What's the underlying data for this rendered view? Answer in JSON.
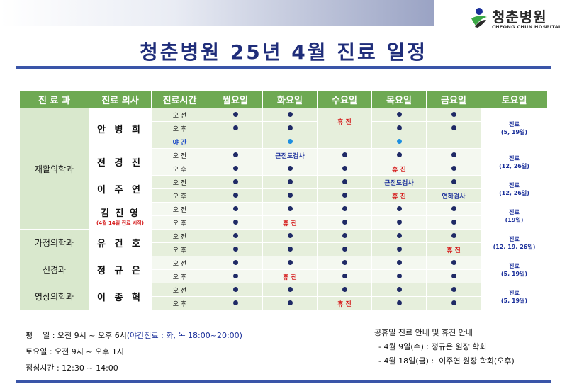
{
  "logo": {
    "name": "청춘병원",
    "sub": "CHEONG CHUN HOSPITAL"
  },
  "title": "청춘병원 25년 4월 진료 일정",
  "headers": [
    "진 료 과",
    "진료 의사",
    "진료시간",
    "월요일",
    "화요일",
    "수요일",
    "목요일",
    "금요일",
    "토요일"
  ],
  "symbols": {
    "off": "휴 진",
    "exam_nerve": "근전도검사",
    "exam_swallow": "연하검사"
  },
  "rows": [
    {
      "time": "오 전",
      "cells": [
        "dot",
        "dot",
        "off",
        "dot",
        "dot"
      ]
    },
    {
      "time": "오 후",
      "cells": [
        "dot",
        "dot",
        "",
        "dot",
        "dot"
      ]
    },
    {
      "time": "야 간",
      "cells": [
        "",
        "blue",
        "",
        "blue",
        ""
      ]
    },
    {
      "time": "오 전",
      "cells": [
        "dot",
        "exam_nerve",
        "dot",
        "dot",
        "dot"
      ]
    },
    {
      "time": "오 후",
      "cells": [
        "dot",
        "dot",
        "dot",
        "off",
        "dot"
      ]
    },
    {
      "time": "오 전",
      "cells": [
        "dot",
        "dot",
        "dot",
        "exam_nerve",
        "dot"
      ]
    },
    {
      "time": "오 후",
      "cells": [
        "dot",
        "dot",
        "dot",
        "off",
        "exam_swallow"
      ]
    },
    {
      "time": "오 전",
      "cells": [
        "dot",
        "dot",
        "dot",
        "dot",
        "dot"
      ]
    },
    {
      "time": "오 후",
      "cells": [
        "dot",
        "off",
        "dot",
        "dot",
        "dot"
      ]
    },
    {
      "time": "오 전",
      "cells": [
        "dot",
        "dot",
        "dot",
        "dot",
        "dot"
      ]
    },
    {
      "time": "오 후",
      "cells": [
        "dot",
        "dot",
        "dot",
        "dot",
        "off"
      ]
    },
    {
      "time": "오 전",
      "cells": [
        "dot",
        "dot",
        "dot",
        "dot",
        "dot"
      ]
    },
    {
      "time": "오 후",
      "cells": [
        "dot",
        "off",
        "dot",
        "dot",
        "dot"
      ]
    },
    {
      "time": "오 전",
      "cells": [
        "dot",
        "dot",
        "dot",
        "dot",
        "dot"
      ]
    },
    {
      "time": "오 후",
      "cells": [
        "dot",
        "dot",
        "off",
        "dot",
        "dot"
      ]
    }
  ],
  "departments": [
    "재활의학과",
    "가정의학과",
    "신경과",
    "영상의학과"
  ],
  "doctors": {
    "d1": "안 병 희",
    "d2": "전 경 진",
    "d3": "이 주 연",
    "d4": "김 진 영",
    "d4_note": "(4월 14일 진료 시작)",
    "d5": "유 건 호",
    "d6": "정 규 은",
    "d7": "이 종 혁"
  },
  "saturday": {
    "s1a": "진료",
    "s1b": "(5, 19일)",
    "s2a": "진료",
    "s2b": "(12, 26일)",
    "s3a": "진료",
    "s3b": "(12, 26일)",
    "s4a": "진료",
    "s4b": "(19일)",
    "s5a": "진료",
    "s5b": "(12, 19, 26일)",
    "s6a": "진료",
    "s6b": "(5, 19일)",
    "s7a": "진료",
    "s7b": "(5, 19일)"
  },
  "footer": {
    "weekday": "평    일 : 오전 9시 ~ 오후 6시",
    "weekday_night": "(야간진료 : 화, 목 18:00~20:00)",
    "saturday": "토요일 : 오전 9시 ~ 오후 1시",
    "lunch": "점심시간 : 12:30 ~ 14:00",
    "notice_title": "공휴일 진료 안내 및 휴진 안내",
    "notice1": "- 4월 9일(수) : 정규은 원장 학회",
    "notice2": "- 4월 18일(금) :  이주연 원장 학회(오후)"
  },
  "colors": {
    "header_green": "#6ea953",
    "title_navy": "#1f2d7a",
    "dot": "#1f2a66",
    "night_dot": "#1e8fe0",
    "off_red": "#d51c1c",
    "rule_blue": "#3a55a8"
  },
  "icons": {
    "available": "filled-circle",
    "night": "blue-circle"
  }
}
